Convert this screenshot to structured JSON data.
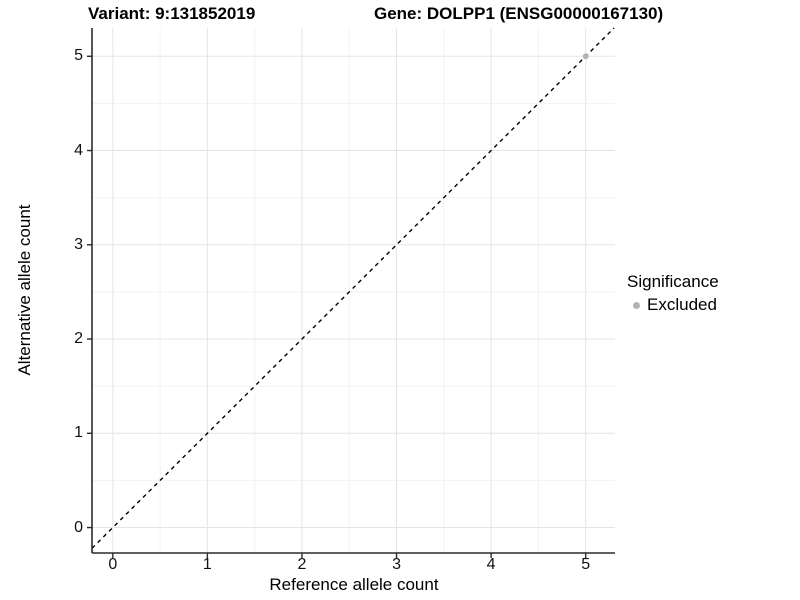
{
  "header": {
    "variant_title": "Variant: 9:131852019",
    "gene_title": "Gene: DOLPP1 (ENSG00000167130)"
  },
  "chart_data": {
    "type": "scatter",
    "xlabel": "Reference allele count",
    "ylabel": "Alternative allele count",
    "x_ticks": [
      0,
      1,
      2,
      3,
      4,
      5
    ],
    "y_ticks": [
      0,
      1,
      2,
      3,
      4,
      5
    ],
    "xlim": [
      -0.22,
      5.31
    ],
    "ylim": [
      -0.27,
      5.3
    ],
    "minor_grid_step": 0.5,
    "grid": true,
    "points": [
      {
        "x": 5,
        "y": 5,
        "significance": "Excluded"
      }
    ],
    "identity_line": {
      "slope": 1,
      "intercept": 0,
      "style": "dashed",
      "color": "#000000"
    },
    "legend": {
      "title": "Significance",
      "position": "right",
      "items": [
        {
          "label": "Excluded",
          "color": "#b3b3b3"
        }
      ]
    }
  },
  "colors": {
    "point": "#b3b3b3",
    "major_grid": "#e5e5e5",
    "minor_grid": "#f2f2f2",
    "axis_line": "#2b2b2b",
    "panel_bg": "#ffffff"
  }
}
